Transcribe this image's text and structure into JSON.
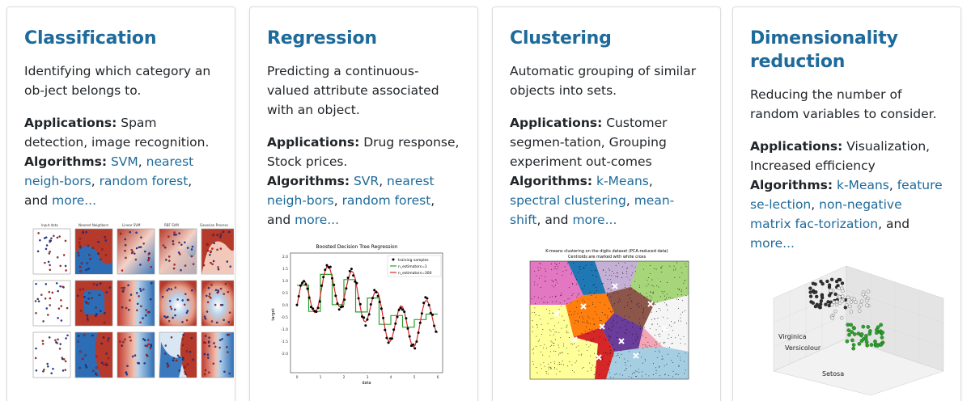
{
  "cards": [
    {
      "title": "Classification",
      "description": "Identifying which category an ob-ject belongs to.",
      "applications_label": "Applications:",
      "applications_text": "Spam detection, image recognition.",
      "algorithms_label": "Algorithms:",
      "links": [
        "SVM",
        "nearest neigh-bors",
        "random forest"
      ],
      "more_link": "more...",
      "figure": {
        "panel_titles": [
          "Input data",
          "Nearest Neighbors",
          "Linear SVM",
          "RBF SVM",
          "Gaussian Process"
        ]
      }
    },
    {
      "title": "Regression",
      "description": "Predicting a continuous-valued attribute associated with an object.",
      "applications_label": "Applications:",
      "applications_text": "Drug response, Stock prices.",
      "algorithms_label": "Algorithms:",
      "links": [
        "SVR",
        "nearest neigh-bors",
        "random forest"
      ],
      "more_link": "more...",
      "figure": {
        "title": "Boosted Decision Tree Regression",
        "xlabel": "data",
        "ylabel": "target",
        "legend": [
          "training samples",
          "n_estimators=1",
          "n_estimators=300"
        ]
      }
    },
    {
      "title": "Clustering",
      "description": "Automatic grouping of similar objects into sets.",
      "applications_label": "Applications:",
      "applications_text": "Customer segmen-tation, Grouping experiment out-comes",
      "algorithms_label": "Algorithms:",
      "links": [
        "k-Means",
        "spectral clustering",
        "mean-shift"
      ],
      "more_link": "more...",
      "figure": {
        "title_line1": "K-means clustering on the digits dataset (PCA-reduced data)",
        "title_line2": "Centroids are marked with white cross"
      }
    },
    {
      "title": "Dimensionality reduction",
      "description": "Reducing the number of random variables to consider.",
      "applications_label": "Applications:",
      "applications_text": "Visualization, Increased efficiency",
      "algorithms_label": "Algorithms:",
      "links": [
        "k-Means",
        "feature se-lection",
        "non-negative matrix fac-torization"
      ],
      "more_link": "more...",
      "figure": {
        "labels": [
          "Virginica",
          "Versicolour",
          "Setosa"
        ]
      }
    }
  ],
  "and_text": "and",
  "colors": {
    "title": "#1e6a9a",
    "link": "#1e6a9a",
    "text": "#212529"
  }
}
